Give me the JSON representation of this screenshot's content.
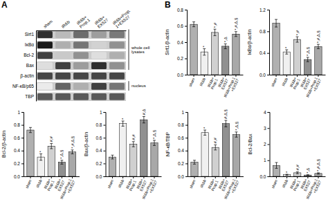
{
  "chart_data": [
    {
      "type": "heatmap",
      "title": "A",
      "x": [
        "sham",
        "IR&b",
        "IR&b+\nProp.1",
        "IR&b+\nEX527",
        "IR&b+Prop.\n1+EX527"
      ],
      "y": [
        "Sirt1",
        "IκBα",
        "Bcl-2",
        "Bax",
        "β-actin",
        "NF-κB/p65",
        "TBP"
      ],
      "values": [
        [
          0.85,
          0.38,
          0.65,
          0.48,
          0.6
        ],
        [
          0.92,
          0.42,
          0.62,
          0.28,
          0.52
        ],
        [
          0.8,
          0.32,
          0.52,
          0.22,
          0.42
        ],
        [
          0.22,
          0.8,
          0.48,
          0.85,
          0.52
        ],
        [
          0.78,
          0.78,
          0.78,
          0.78,
          0.78
        ],
        [
          0.15,
          0.68,
          0.42,
          0.8,
          0.62
        ],
        [
          0.72,
          0.72,
          0.72,
          0.72,
          0.72
        ]
      ],
      "annotations": [
        {
          "text": "whole cell\nlysates",
          "from": "Sirt1",
          "to": "Bax"
        },
        {
          "text": "nucleus",
          "from": "NF-κB/p65",
          "to": "NF-κB/p65"
        }
      ]
    },
    {
      "type": "bar",
      "title": "B",
      "categories": [
        "sham",
        "IR&b",
        "IR&b+\nProp.1",
        "IR&b+\nEX527",
        "IR&b+Prop.1\n+EX527"
      ],
      "values": [
        0.62,
        0.28,
        0.52,
        0.35,
        0.5
      ],
      "errors": [
        0.03,
        0.04,
        0.04,
        0.03,
        0.03
      ],
      "colors": [
        "#b0b0b0",
        "#f0f0f0",
        "#d0d0d0",
        "#909090",
        "#a8a8a8"
      ],
      "ylabel": "Sirt1/β-actin",
      "ylim": [
        0.0,
        0.8
      ],
      "yticks": [
        {
          "value": 0.0,
          "label": "0.0"
        },
        0.2,
        0.4,
        0.6,
        0.8
      ],
      "annotations": [
        null,
        "*",
        "*,#",
        "*,Δ",
        "*,#,Δ,§"
      ]
    },
    {
      "type": "bar",
      "categories": [
        "sham",
        "IR&b",
        "IR&b+\nProp.1",
        "IR&b+\nEX527",
        "IR&b+Prop.1\n+EX527"
      ],
      "values": [
        0.95,
        0.42,
        0.65,
        0.28,
        0.52
      ],
      "errors": [
        0.07,
        0.04,
        0.05,
        0.04,
        0.04
      ],
      "colors": [
        "#b0b0b0",
        "#f0f0f0",
        "#d0d0d0",
        "#909090",
        "#a8a8a8"
      ],
      "ylabel": "IκBα/β-actin",
      "ylim": [
        0.0,
        1.2
      ],
      "yticks": [
        {
          "value": 0.0,
          "label": "0.0"
        },
        0.4,
        0.8,
        1.2
      ],
      "annotations": [
        null,
        "*",
        "*,#",
        "*,Δ,§",
        "*,#,Δ,§"
      ]
    },
    {
      "type": "bar",
      "categories": [
        "sham",
        "IR&b",
        "IR&b+\nProp.1",
        "IR&b+\nEX527",
        "IR&b+Prop.1\n+EX527"
      ],
      "values": [
        0.72,
        0.3,
        0.47,
        0.22,
        0.38
      ],
      "errors": [
        0.04,
        0.05,
        0.04,
        0.03,
        0.03
      ],
      "colors": [
        "#b0b0b0",
        "#f0f0f0",
        "#d0d0d0",
        "#909090",
        "#a8a8a8"
      ],
      "ylabel": "Bcl-2/β-actin",
      "ylim": [
        0.0,
        1.0
      ],
      "yticks": [
        {
          "value": 0.0,
          "label": "0.0"
        },
        0.2,
        0.4,
        0.6,
        0.8,
        1
      ],
      "annotations": [
        null,
        "*",
        "#,#",
        "*,Δ,§",
        "*,#,Δ,§"
      ]
    },
    {
      "type": "bar",
      "categories": [
        "sham",
        "IR&b",
        "IR&b+\nProp.1",
        "IR&b+\nEX527",
        "IR&b+Prop.1\n+EX527"
      ],
      "values": [
        0.3,
        0.82,
        0.5,
        0.88,
        0.52
      ],
      "errors": [
        0.03,
        0.04,
        0.04,
        0.05,
        0.04
      ],
      "colors": [
        "#b0b0b0",
        "#f0f0f0",
        "#d0d0d0",
        "#909090",
        "#a8a8a8"
      ],
      "ylabel": "Bax/β-actin",
      "ylim": [
        0.0,
        1.0
      ],
      "yticks": [
        {
          "value": 0.0,
          "label": "0.0"
        },
        0.2,
        0.4,
        0.6,
        0.8,
        1
      ],
      "annotations": [
        null,
        "*",
        "#,#",
        "#,Δ",
        "*,Δ,§"
      ]
    },
    {
      "type": "bar",
      "categories": [
        "sham",
        "IR&b",
        "IR&b+\nProp.1",
        "IR&b+\nEX527",
        "IR&b+Prop.1\n+EX527"
      ],
      "values": [
        0.22,
        0.68,
        0.45,
        0.82,
        0.65
      ],
      "errors": [
        0.03,
        0.04,
        0.04,
        0.05,
        0.04
      ],
      "colors": [
        "#b0b0b0",
        "#f0f0f0",
        "#d0d0d0",
        "#909090",
        "#a8a8a8"
      ],
      "ylabel": "NF-κB/TBP",
      "ylim": [
        0.0,
        1.0
      ],
      "yticks": [
        {
          "value": 0.0,
          "label": "0.0"
        },
        0.2,
        0.4,
        0.6,
        0.8,
        1
      ],
      "annotations": [
        null,
        "*",
        "#,#",
        "#,Δ,§",
        "*,Δ,§"
      ]
    },
    {
      "type": "bar",
      "categories": [
        "sham",
        "IR&b",
        "IR&b+\nProp.1",
        "IR&b+\nEX527",
        "IR&b+Prop.1\n+EX527"
      ],
      "values": [
        0.68,
        0.1,
        0.22,
        0.08,
        0.18
      ],
      "errors": [
        0.18,
        0.03,
        0.06,
        0.02,
        0.04
      ],
      "colors": [
        "#b0b0b0",
        "#f0f0f0",
        "#d0d0d0",
        "#909090",
        "#a8a8a8"
      ],
      "ylabel": "Bcl-2/Bax",
      "ylim": [
        0.0,
        4.0
      ],
      "yticks": [
        {
          "value": 0,
          "label": "0.0"
        },
        1,
        2,
        3,
        4
      ],
      "annotations": [
        null,
        "*",
        "#,#",
        "*,Δ",
        "*,#,Δ,§"
      ]
    }
  ]
}
